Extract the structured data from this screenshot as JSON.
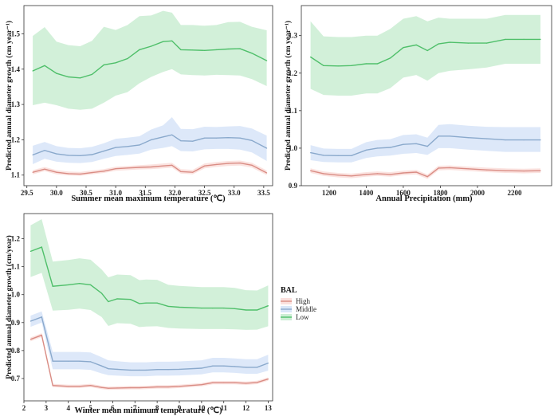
{
  "legend": {
    "title": "BAL",
    "items": [
      {
        "name": "High",
        "line": "#d98c84",
        "fill": "#fbe0dd"
      },
      {
        "name": "Middle",
        "line": "#8aa9cc",
        "fill": "#d9e6f8"
      },
      {
        "name": "Low",
        "line": "#4fbf6a",
        "fill": "#cdeed5"
      }
    ]
  },
  "chart_data": [
    {
      "type": "line",
      "xlabel": "Summer mean maximum temperature (℃)",
      "ylabel": "Predicted annual diameter growth (cm year⁻¹)",
      "xlim": [
        29.45,
        33.65
      ],
      "ylim": [
        1.07,
        1.58
      ],
      "xticks": [
        29.5,
        30.0,
        30.5,
        31.0,
        31.5,
        32.0,
        32.5,
        33.0,
        33.5
      ],
      "xtick_labels": [
        "29.5",
        "30.0",
        "30.5",
        "31.0",
        "31.5",
        "32.0",
        "32.5",
        "33.0",
        "33.5"
      ],
      "yticks": [
        1.1,
        1.2,
        1.3,
        1.4,
        1.5
      ],
      "ytick_labels": [
        "1.1",
        "1.2",
        "1.3",
        "1.4",
        "1.5"
      ],
      "x": [
        29.6,
        29.8,
        30.0,
        30.2,
        30.4,
        30.6,
        30.8,
        31.0,
        31.2,
        31.4,
        31.6,
        31.8,
        31.95,
        32.1,
        32.3,
        32.5,
        32.7,
        32.9,
        33.1,
        33.3,
        33.55
      ],
      "series": [
        {
          "name": "High",
          "values": [
            1.108,
            1.117,
            1.108,
            1.104,
            1.103,
            1.107,
            1.111,
            1.118,
            1.12,
            1.122,
            1.123,
            1.126,
            1.128,
            1.11,
            1.108,
            1.126,
            1.13,
            1.133,
            1.134,
            1.128,
            1.106
          ],
          "lower": [
            1.102,
            1.111,
            1.102,
            1.099,
            1.098,
            1.102,
            1.106,
            1.112,
            1.114,
            1.116,
            1.117,
            1.119,
            1.121,
            1.104,
            1.102,
            1.119,
            1.123,
            1.126,
            1.127,
            1.121,
            1.1
          ],
          "upper": [
            1.114,
            1.123,
            1.114,
            1.11,
            1.109,
            1.113,
            1.117,
            1.124,
            1.126,
            1.128,
            1.13,
            1.133,
            1.135,
            1.117,
            1.115,
            1.133,
            1.137,
            1.14,
            1.141,
            1.135,
            1.113
          ]
        },
        {
          "name": "Middle",
          "values": [
            1.157,
            1.17,
            1.16,
            1.156,
            1.155,
            1.158,
            1.168,
            1.178,
            1.181,
            1.185,
            1.2,
            1.208,
            1.214,
            1.197,
            1.196,
            1.205,
            1.205,
            1.206,
            1.205,
            1.198,
            1.176
          ],
          "lower": [
            1.131,
            1.146,
            1.138,
            1.135,
            1.134,
            1.137,
            1.146,
            1.154,
            1.157,
            1.161,
            1.172,
            1.177,
            1.182,
            1.168,
            1.167,
            1.173,
            1.174,
            1.174,
            1.172,
            1.164,
            1.14
          ],
          "upper": [
            1.183,
            1.194,
            1.182,
            1.177,
            1.176,
            1.18,
            1.19,
            1.203,
            1.206,
            1.21,
            1.229,
            1.241,
            1.264,
            1.231,
            1.23,
            1.237,
            1.236,
            1.238,
            1.239,
            1.232,
            1.212
          ]
        },
        {
          "name": "Low",
          "values": [
            1.395,
            1.41,
            1.388,
            1.378,
            1.375,
            1.385,
            1.412,
            1.418,
            1.43,
            1.455,
            1.465,
            1.478,
            1.48,
            1.455,
            1.454,
            1.453,
            1.455,
            1.457,
            1.458,
            1.445,
            1.424
          ],
          "lower": [
            1.298,
            1.305,
            1.298,
            1.288,
            1.285,
            1.288,
            1.305,
            1.325,
            1.335,
            1.36,
            1.378,
            1.392,
            1.4,
            1.385,
            1.383,
            1.382,
            1.384,
            1.383,
            1.382,
            1.372,
            1.352
          ],
          "upper": [
            1.494,
            1.519,
            1.478,
            1.468,
            1.465,
            1.48,
            1.52,
            1.511,
            1.525,
            1.55,
            1.552,
            1.565,
            1.56,
            1.525,
            1.525,
            1.523,
            1.525,
            1.533,
            1.534,
            1.52,
            1.51
          ]
        }
      ]
    },
    {
      "type": "line",
      "xlabel": "Annual Precipitation (mm)",
      "ylabel": "Predicted annual diameter growth (cm year⁻¹)",
      "xlim": [
        1050,
        2400
      ],
      "ylim": [
        0.9,
        1.38
      ],
      "xticks": [
        1200,
        1400,
        1600,
        1800,
        2000,
        2200
      ],
      "xtick_labels": [
        "1200",
        "1400",
        "1600",
        "1800",
        "2000",
        "2200"
      ],
      "yticks": [
        0.9,
        1.0,
        1.1,
        1.2,
        1.3
      ],
      "ytick_labels": [
        "0.9",
        "1.0",
        "1.1",
        "1.2",
        "1.3"
      ],
      "x": [
        1100,
        1170,
        1250,
        1320,
        1400,
        1460,
        1530,
        1600,
        1670,
        1730,
        1790,
        1850,
        1950,
        2050,
        2150,
        2250,
        2340
      ],
      "series": [
        {
          "name": "High",
          "values": [
            0.94,
            0.932,
            0.928,
            0.926,
            0.93,
            0.932,
            0.93,
            0.934,
            0.936,
            0.924,
            0.947,
            0.948,
            0.945,
            0.942,
            0.94,
            0.939,
            0.94
          ],
          "lower": [
            0.934,
            0.926,
            0.922,
            0.92,
            0.924,
            0.926,
            0.924,
            0.928,
            0.93,
            0.918,
            0.941,
            0.942,
            0.939,
            0.936,
            0.934,
            0.933,
            0.934
          ],
          "upper": [
            0.946,
            0.938,
            0.934,
            0.932,
            0.936,
            0.938,
            0.936,
            0.94,
            0.942,
            0.93,
            0.953,
            0.954,
            0.951,
            0.948,
            0.946,
            0.945,
            0.946
          ]
        },
        {
          "name": "Middle",
          "values": [
            0.988,
            0.981,
            0.98,
            0.98,
            0.995,
            1.0,
            1.002,
            1.01,
            1.012,
            1.005,
            1.032,
            1.032,
            1.028,
            1.025,
            1.022,
            1.022,
            1.022
          ],
          "lower": [
            0.968,
            0.963,
            0.962,
            0.962,
            0.974,
            0.978,
            0.98,
            0.985,
            0.987,
            0.982,
            1.0,
            1.0,
            0.996,
            0.993,
            0.99,
            0.99,
            0.99
          ],
          "upper": [
            1.008,
            0.999,
            0.998,
            0.998,
            1.016,
            1.022,
            1.024,
            1.035,
            1.037,
            1.028,
            1.062,
            1.064,
            1.06,
            1.057,
            1.056,
            1.056,
            1.056
          ]
        },
        {
          "name": "Low",
          "values": [
            1.243,
            1.22,
            1.219,
            1.22,
            1.225,
            1.225,
            1.24,
            1.268,
            1.275,
            1.26,
            1.278,
            1.282,
            1.28,
            1.28,
            1.29,
            1.29,
            1.29
          ],
          "lower": [
            1.158,
            1.142,
            1.14,
            1.14,
            1.146,
            1.146,
            1.16,
            1.188,
            1.195,
            1.18,
            1.2,
            1.206,
            1.21,
            1.215,
            1.225,
            1.225,
            1.225
          ],
          "upper": [
            1.338,
            1.298,
            1.296,
            1.296,
            1.3,
            1.3,
            1.318,
            1.345,
            1.352,
            1.338,
            1.348,
            1.345,
            1.345,
            1.345,
            1.355,
            1.355,
            1.355
          ]
        }
      ]
    },
    {
      "type": "line",
      "xlabel": "Winter mean minimum temperature (℃)",
      "ylabel": "Predicted annual diameter growth (cm/year)",
      "xlim": [
        2.0,
        13.2
      ],
      "ylim": [
        0.62,
        1.29
      ],
      "xticks": [
        2,
        3,
        4,
        5,
        6,
        7,
        8,
        9,
        10,
        11,
        12,
        13
      ],
      "xtick_labels": [
        "2",
        "3",
        "4",
        "5",
        "6",
        "7",
        "8",
        "9",
        "10",
        "11",
        "12",
        "13"
      ],
      "yticks": [
        0.7,
        0.8,
        0.9,
        1.0,
        1.1,
        1.2
      ],
      "ytick_labels": [
        "0.7",
        "0.8",
        "0.9",
        "1.0",
        "1.1",
        "1.2"
      ],
      "x": [
        2.3,
        2.8,
        3.3,
        4.0,
        4.5,
        5.0,
        5.5,
        5.8,
        6.2,
        6.8,
        7.2,
        7.5,
        8.0,
        8.5,
        9.0,
        10.0,
        10.5,
        11.0,
        11.5,
        12.0,
        12.5,
        13.0
      ],
      "series": [
        {
          "name": "High",
          "values": [
            0.84,
            0.855,
            0.675,
            0.672,
            0.672,
            0.675,
            0.668,
            0.665,
            0.666,
            0.667,
            0.667,
            0.668,
            0.67,
            0.67,
            0.672,
            0.678,
            0.685,
            0.685,
            0.685,
            0.683,
            0.686,
            0.698
          ],
          "lower": [
            0.833,
            0.848,
            0.669,
            0.666,
            0.666,
            0.669,
            0.662,
            0.659,
            0.66,
            0.661,
            0.661,
            0.662,
            0.664,
            0.664,
            0.666,
            0.672,
            0.679,
            0.679,
            0.679,
            0.677,
            0.68,
            0.692
          ],
          "upper": [
            0.847,
            0.862,
            0.681,
            0.678,
            0.678,
            0.681,
            0.674,
            0.671,
            0.672,
            0.673,
            0.673,
            0.674,
            0.676,
            0.676,
            0.678,
            0.684,
            0.691,
            0.691,
            0.691,
            0.689,
            0.692,
            0.704
          ]
        },
        {
          "name": "Middle",
          "values": [
            0.905,
            0.92,
            0.762,
            0.762,
            0.762,
            0.76,
            0.745,
            0.735,
            0.733,
            0.73,
            0.73,
            0.73,
            0.732,
            0.732,
            0.733,
            0.737,
            0.745,
            0.745,
            0.743,
            0.74,
            0.74,
            0.755
          ],
          "lower": [
            0.885,
            0.9,
            0.733,
            0.733,
            0.733,
            0.731,
            0.718,
            0.712,
            0.71,
            0.708,
            0.708,
            0.708,
            0.71,
            0.71,
            0.711,
            0.715,
            0.722,
            0.722,
            0.72,
            0.717,
            0.717,
            0.728
          ],
          "upper": [
            0.925,
            0.94,
            0.795,
            0.795,
            0.795,
            0.793,
            0.776,
            0.765,
            0.762,
            0.758,
            0.758,
            0.758,
            0.76,
            0.76,
            0.761,
            0.765,
            0.774,
            0.774,
            0.772,
            0.769,
            0.769,
            0.785
          ]
        },
        {
          "name": "Low",
          "values": [
            1.155,
            1.17,
            1.03,
            1.035,
            1.04,
            1.035,
            1.005,
            0.975,
            0.985,
            0.983,
            0.968,
            0.97,
            0.97,
            0.958,
            0.955,
            0.952,
            0.952,
            0.952,
            0.95,
            0.945,
            0.945,
            0.96
          ],
          "lower": [
            1.063,
            1.078,
            0.943,
            0.946,
            0.95,
            0.945,
            0.92,
            0.888,
            0.898,
            0.896,
            0.884,
            0.886,
            0.887,
            0.881,
            0.879,
            0.877,
            0.877,
            0.877,
            0.876,
            0.874,
            0.875,
            0.887
          ],
          "upper": [
            1.248,
            1.27,
            1.118,
            1.124,
            1.13,
            1.125,
            1.09,
            1.062,
            1.072,
            1.07,
            1.052,
            1.054,
            1.053,
            1.035,
            1.031,
            1.027,
            1.027,
            1.027,
            1.024,
            1.016,
            1.015,
            1.033
          ]
        }
      ]
    }
  ]
}
